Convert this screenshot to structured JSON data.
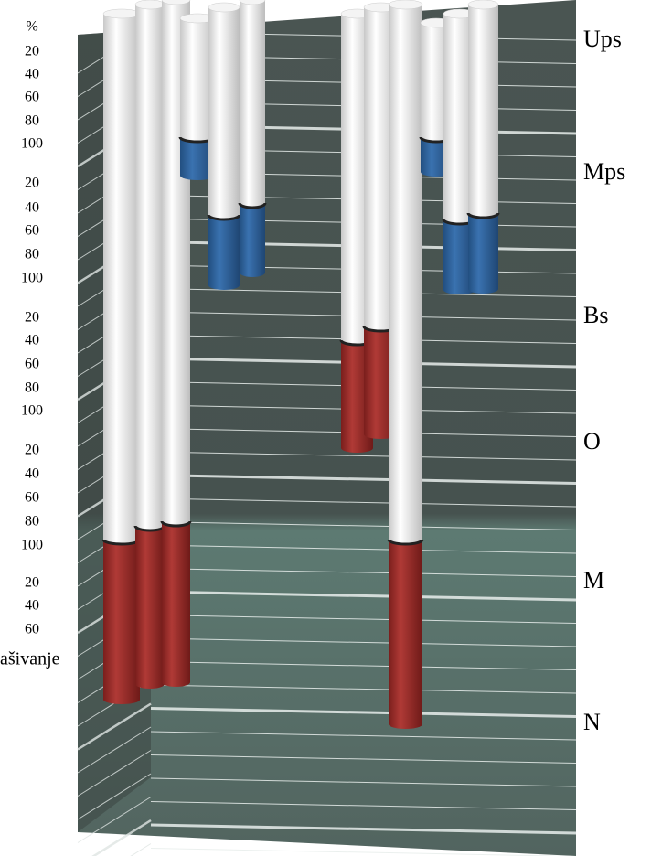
{
  "scale": {
    "unit": "%",
    "labels": [
      "20",
      "40",
      "60",
      "80",
      "100",
      "20",
      "40",
      "60",
      "80",
      "100",
      "20",
      "40",
      "60",
      "80",
      "100",
      "20",
      "40",
      "60",
      "80",
      "100",
      "20",
      "40",
      "60"
    ]
  },
  "zones": [
    "Ups",
    "Mps",
    "Bs",
    "O",
    "M",
    "N"
  ],
  "fragment": "ašivanje"
}
